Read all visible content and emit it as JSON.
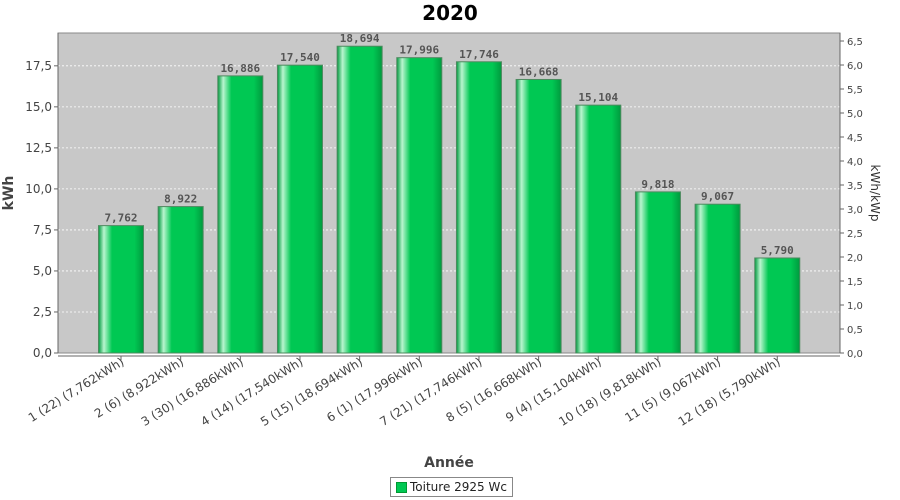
{
  "chart_data": {
    "type": "bar",
    "title": "2020",
    "xlabel": "Année",
    "ylabel": "kWh",
    "y2label": "kWh/kWp",
    "categories": [
      "1 (22)  (7,762kWh)",
      "2 (6)  (8,922kWh)",
      "3 (30)  (16,886kWh)",
      "4 (14)  (17,540kWh)",
      "5 (15)  (18,694kWh)",
      "6 (1)  (17,996kWh)",
      "7 (21)  (17,746kWh)",
      "8 (5)  (16,668kWh)",
      "9 (4)  (15,104kWh)",
      "10 (18)  (9,818kWh)",
      "11 (5)  (9,067kWh)",
      "12 (18)  (5,790kWh)"
    ],
    "series": [
      {
        "name": "Toiture 2925 Wc",
        "values": [
          7.762,
          8.922,
          16.886,
          17.54,
          18.694,
          17.996,
          17.746,
          16.668,
          15.104,
          9.818,
          9.067,
          5.79
        ],
        "labels": [
          "7,762",
          "8,922",
          "16,886",
          "17,540",
          "18,694",
          "17,996",
          "17,746",
          "16,668",
          "15,104",
          "9,818",
          "9,067",
          "5,790"
        ]
      }
    ],
    "ylim": [
      0,
      19.5
    ],
    "yticks": [
      "0,0",
      "2,5",
      "5,0",
      "7,5",
      "10,0",
      "12,5",
      "15,0",
      "17,5"
    ],
    "y2lim": [
      0,
      6.667
    ],
    "y2ticks": [
      "0,0",
      "0,5",
      "1,0",
      "1,5",
      "2,0",
      "2,5",
      "3,0",
      "3,5",
      "4,0",
      "4,5",
      "5,0",
      "5,5",
      "6,0",
      "6,5"
    ],
    "grid": true,
    "legend": "bottom-center",
    "colors": {
      "bar": "#00c853",
      "bar_light": "#b9f5cf",
      "bar_dark": "#009a3e",
      "plot_bg": "#c8c8c8"
    }
  }
}
